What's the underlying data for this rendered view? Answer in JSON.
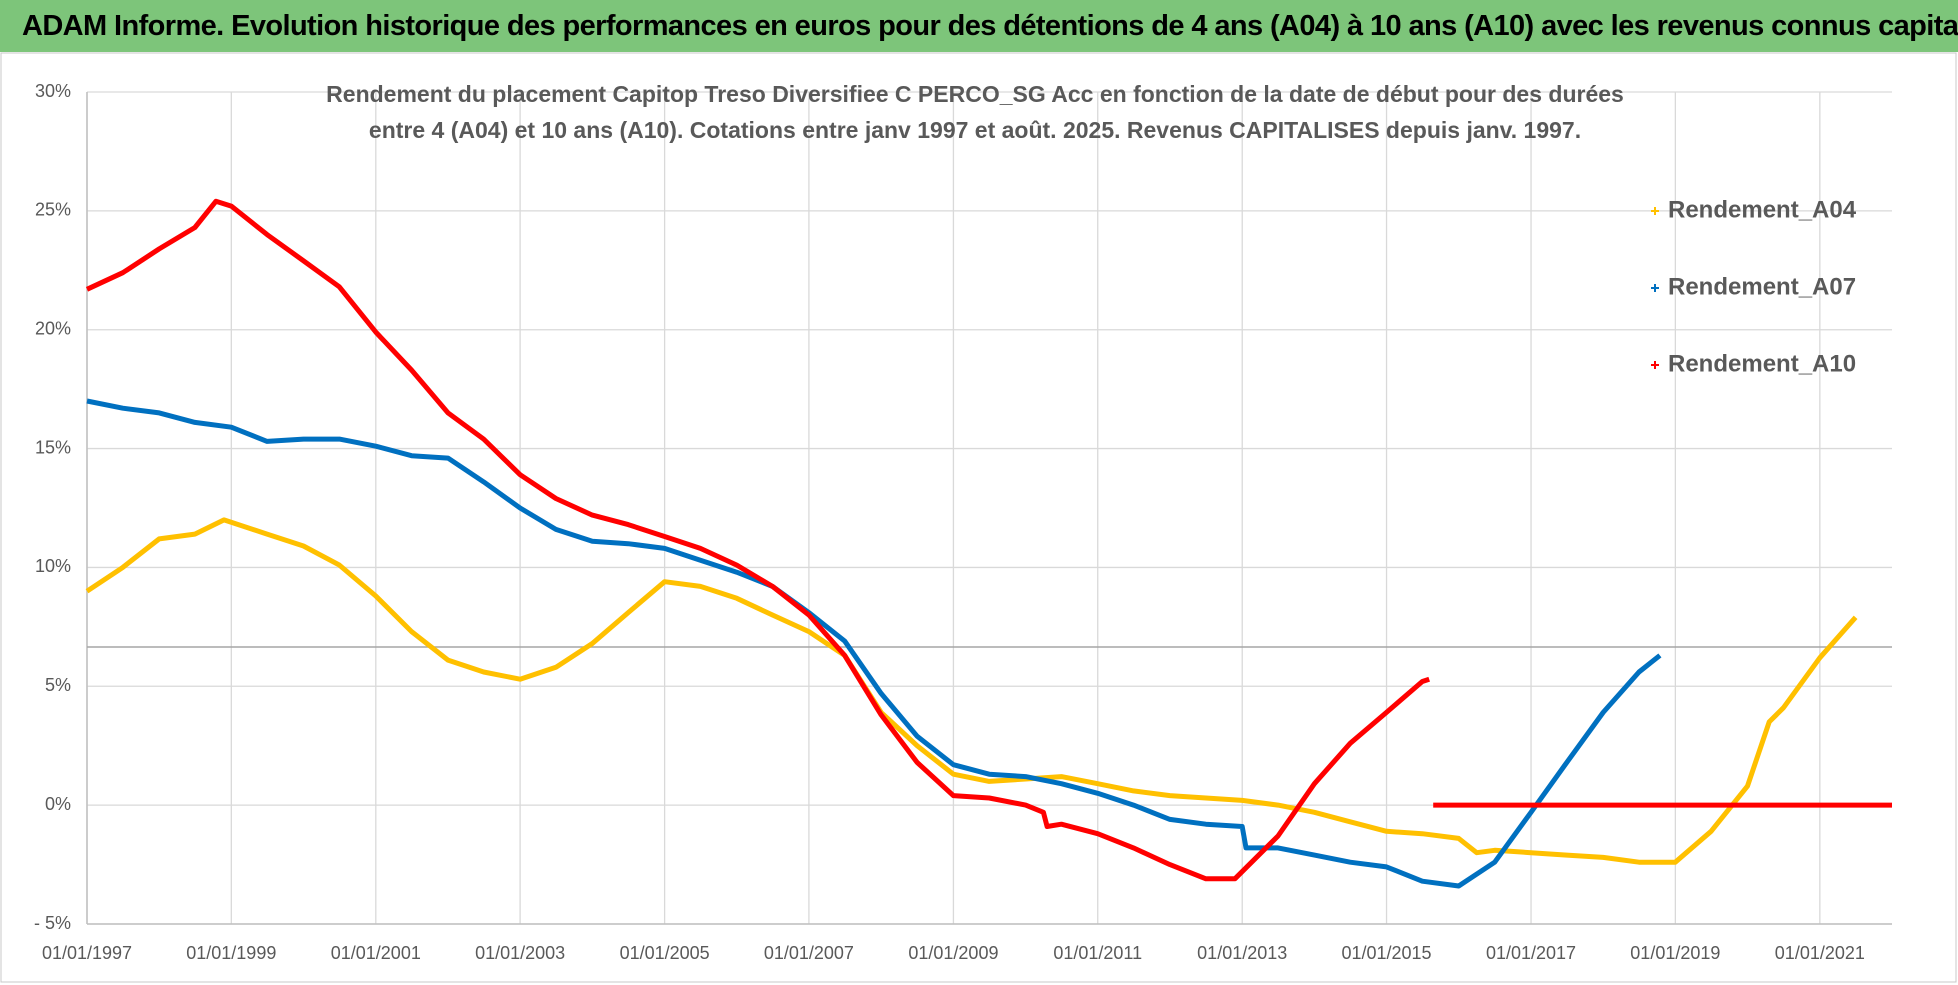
{
  "header": {
    "title": "ADAM Informe. Evolution historique des performances en euros pour des détentions de 4 ans (A04) à 10 ans (A10) avec les revenus connus capitalisés"
  },
  "chart_data": {
    "type": "line",
    "title_lines": [
      "Rendement du placement Capitop Treso Diversifiee C PERCO_SG Acc en fonction de la date de début pour des durées",
      "entre 4 (A04) et 10 ans (A10). Cotations entre janv 1997 et août. 2025. Revenus CAPITALISES depuis janv. 1997."
    ],
    "xlim": [
      "1997-01-01",
      "2022-01-01"
    ],
    "xticks": [
      {
        "value": "1997-01-01",
        "label": "01/01/1997"
      },
      {
        "value": "1999-01-01",
        "label": "01/01/1999"
      },
      {
        "value": "2001-01-01",
        "label": "01/01/2001"
      },
      {
        "value": "2003-01-01",
        "label": "01/01/2003"
      },
      {
        "value": "2005-01-01",
        "label": "01/01/2005"
      },
      {
        "value": "2007-01-01",
        "label": "01/01/2007"
      },
      {
        "value": "2009-01-01",
        "label": "01/01/2009"
      },
      {
        "value": "2011-01-01",
        "label": "01/01/2011"
      },
      {
        "value": "2013-01-01",
        "label": "01/01/2013"
      },
      {
        "value": "2015-01-01",
        "label": "01/01/2015"
      },
      {
        "value": "2017-01-01",
        "label": "01/01/2017"
      },
      {
        "value": "2019-01-01",
        "label": "01/01/2019"
      },
      {
        "value": "2021-01-01",
        "label": "01/01/2021"
      }
    ],
    "ylim": [
      -5,
      30
    ],
    "yticks": [
      {
        "value": -5,
        "label": "- 5%"
      },
      {
        "value": 0,
        "label": "0%"
      },
      {
        "value": 5,
        "label": "5%"
      },
      {
        "value": 10,
        "label": "10%"
      },
      {
        "value": 15,
        "label": "15%"
      },
      {
        "value": 20,
        "label": "20%"
      },
      {
        "value": 25,
        "label": "25%"
      },
      {
        "value": 30,
        "label": "30%"
      }
    ],
    "grid": true,
    "legend": "right",
    "series": [
      {
        "name": "Rendement_A04",
        "color": "#ffc000",
        "x": [
          "1997-01-01",
          "1997-07-01",
          "1998-01-01",
          "1998-07-01",
          "1998-11-25",
          "1999-07-01",
          "2000-01-01",
          "2000-07-01",
          "2001-01-01",
          "2001-07-01",
          "2002-01-01",
          "2002-07-01",
          "2003-01-01",
          "2003-07-01",
          "2004-01-01",
          "2004-07-01",
          "2005-01-01",
          "2005-07-01",
          "2006-01-01",
          "2006-07-01",
          "2007-01-01",
          "2007-07-01",
          "2008-01-01",
          "2008-07-01",
          "2009-01-01",
          "2009-07-01",
          "2010-01-01",
          "2010-07-01",
          "2011-01-01",
          "2011-07-01",
          "2012-01-01",
          "2012-07-01",
          "2013-01-01",
          "2013-07-01",
          "2014-01-01",
          "2014-07-01",
          "2015-01-01",
          "2015-07-01",
          "2016-01-01",
          "2016-04-01",
          "2016-07-01",
          "2017-01-01",
          "2017-07-01",
          "2018-01-01",
          "2018-07-01",
          "2019-01-01",
          "2019-07-01",
          "2020-01-01",
          "2020-04-20",
          "2020-07-01",
          "2021-01-01",
          "2021-07-01"
        ],
        "values": [
          9.0,
          10.0,
          11.2,
          11.4,
          12.0,
          11.4,
          10.9,
          10.1,
          8.8,
          7.3,
          6.1,
          5.6,
          5.3,
          5.8,
          6.8,
          8.1,
          9.4,
          9.2,
          8.7,
          8.0,
          7.3,
          6.3,
          3.9,
          2.5,
          1.3,
          1.0,
          1.1,
          1.2,
          0.9,
          0.6,
          0.4,
          0.3,
          0.2,
          0.0,
          -0.3,
          -0.7,
          -1.1,
          -1.2,
          -1.4,
          -2.0,
          -1.9,
          -2.0,
          -2.1,
          -2.2,
          -2.4,
          -2.4,
          -1.1,
          0.8,
          3.5,
          4.1,
          6.2,
          7.9
        ]
      },
      {
        "name": "Rendement_A07",
        "color": "#0070c0",
        "x": [
          "1997-01-01",
          "1997-07-01",
          "1998-01-01",
          "1998-07-01",
          "1999-01-01",
          "1999-07-01",
          "2000-01-01",
          "2000-07-01",
          "2001-01-01",
          "2001-07-01",
          "2002-01-01",
          "2002-07-01",
          "2003-01-01",
          "2003-07-01",
          "2004-01-01",
          "2004-07-01",
          "2005-01-01",
          "2005-07-01",
          "2006-01-01",
          "2006-07-01",
          "2007-01-01",
          "2007-07-01",
          "2008-01-01",
          "2008-07-01",
          "2009-01-01",
          "2009-07-01",
          "2010-01-01",
          "2010-07-01",
          "2011-01-01",
          "2011-07-01",
          "2012-01-01",
          "2012-07-01",
          "2013-01-01",
          "2013-01-20",
          "2013-07-01",
          "2014-01-01",
          "2014-07-01",
          "2015-01-01",
          "2015-07-01",
          "2016-01-01",
          "2016-07-01",
          "2017-01-01",
          "2017-07-01",
          "2018-01-01",
          "2018-07-01",
          "2018-10-15"
        ],
        "values": [
          17.0,
          16.7,
          16.5,
          16.1,
          15.9,
          15.3,
          15.4,
          15.4,
          15.1,
          14.7,
          14.6,
          13.6,
          12.5,
          11.6,
          11.1,
          11.0,
          10.8,
          10.3,
          9.8,
          9.2,
          8.1,
          6.9,
          4.7,
          2.9,
          1.7,
          1.3,
          1.2,
          0.9,
          0.5,
          0.0,
          -0.6,
          -0.8,
          -0.9,
          -1.8,
          -1.8,
          -2.1,
          -2.4,
          -2.6,
          -3.2,
          -3.4,
          -2.4,
          -0.3,
          1.8,
          3.9,
          5.6,
          6.3
        ]
      },
      {
        "name": "Rendement_A10",
        "color": "#ff0000",
        "x": [
          "1997-01-01",
          "1997-07-01",
          "1998-01-01",
          "1998-07-01",
          "1998-10-15",
          "1999-01-01",
          "1999-07-01",
          "2000-01-01",
          "2000-07-01",
          "2001-01-01",
          "2001-07-01",
          "2002-01-01",
          "2002-07-01",
          "2003-01-01",
          "2003-07-01",
          "2004-01-01",
          "2004-07-01",
          "2005-01-01",
          "2005-07-01",
          "2006-01-01",
          "2006-07-01",
          "2007-01-01",
          "2007-07-01",
          "2008-01-01",
          "2008-07-01",
          "2009-01-01",
          "2009-07-01",
          "2010-01-01",
          "2010-04-01",
          "2010-04-20",
          "2010-07-01",
          "2011-01-01",
          "2011-07-01",
          "2012-01-01",
          "2012-07-01",
          "2012-11-25",
          "2013-07-01",
          "2014-01-01",
          "2014-07-01",
          "2015-01-01",
          "2015-07-01",
          "2015-08-05",
          "2015-08-25",
          "2015-08-25",
          "2022-01-01"
        ],
        "values": [
          21.7,
          22.4,
          23.4,
          24.3,
          25.4,
          25.2,
          24.0,
          22.9,
          21.8,
          19.9,
          18.3,
          16.5,
          15.4,
          13.9,
          12.9,
          12.2,
          11.8,
          11.3,
          10.8,
          10.1,
          9.2,
          8.0,
          6.3,
          3.8,
          1.8,
          0.4,
          0.3,
          0.0,
          -0.3,
          -0.9,
          -0.8,
          -1.2,
          -1.8,
          -2.5,
          -3.1,
          -3.1,
          -1.3,
          0.9,
          2.6,
          3.9,
          5.2,
          5.3,
          null,
          0,
          0
        ]
      }
    ]
  }
}
